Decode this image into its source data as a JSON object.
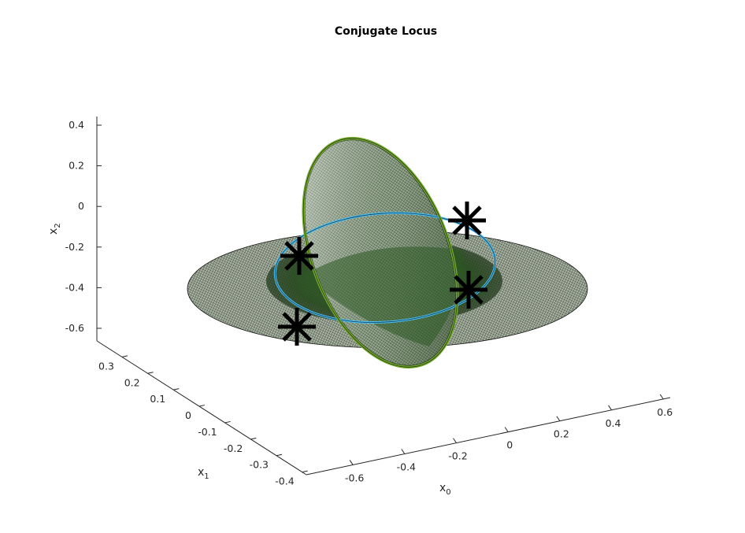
{
  "chart_data": {
    "type": "surface3d",
    "title": "Conjugate Locus",
    "axes": {
      "x0": {
        "label": "x",
        "subscript": "0",
        "ticks": [
          -0.6,
          -0.4,
          -0.2,
          0,
          0.2,
          0.4,
          0.6
        ],
        "tick_labels": [
          "-0.6",
          "-0.4",
          "-0.2",
          "0",
          "0.2",
          "0.4",
          "0.6"
        ]
      },
      "x1": {
        "label": "x",
        "subscript": "1",
        "ticks": [
          0.3,
          0.2,
          0.1,
          0,
          -0.1,
          -0.2,
          -0.3,
          -0.4
        ],
        "tick_labels": [
          "0.3",
          "0.2",
          "0.1",
          "0",
          "-0.1",
          "-0.2",
          "-0.3",
          "-0.4"
        ]
      },
      "x2": {
        "label": "x",
        "subscript": "2",
        "ticks": [
          0.4,
          0.2,
          0,
          -0.2,
          -0.4,
          -0.6
        ],
        "tick_labels": [
          "0.4",
          "0.2",
          "0",
          "-0.2",
          "-0.4",
          "-0.6"
        ]
      }
    },
    "series": [
      {
        "kind": "surface",
        "shape": "flat ellipse",
        "color": "#1f3d1a",
        "edge": "#000000"
      },
      {
        "kind": "surface",
        "shape": "tilted ellipse",
        "color": "#2e5f24",
        "edge": "#000000"
      },
      {
        "kind": "curve",
        "shape": "closed",
        "color": "#77ac30"
      },
      {
        "kind": "curve",
        "shape": "closed",
        "color": "#4dbeee"
      },
      {
        "kind": "points",
        "marker": "asterisk",
        "color": "#000000",
        "count": 4
      }
    ],
    "grid": false,
    "legend": "none"
  }
}
